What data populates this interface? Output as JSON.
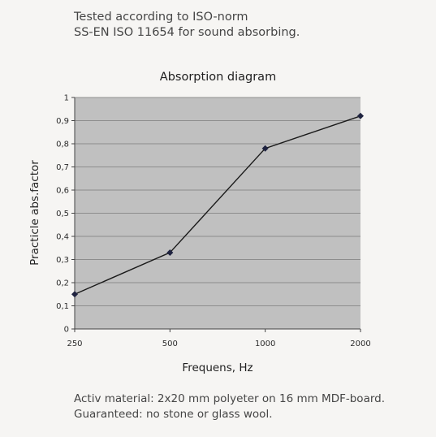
{
  "header": {
    "line1": "Tested according to ISO-norm",
    "line2": "SS-EN ISO 11654 for sound absorbing."
  },
  "footer": {
    "line1": "Activ material: 2x20 mm polyeter on 16 mm MDF-board.",
    "line2": "Guaranteed: no stone or glass wool."
  },
  "colors": {
    "page_background": "#f6f5f3",
    "plot_background": "#c0c0c0",
    "series_line": "#1a1a1a",
    "marker": "#1f2340"
  },
  "chart_data": {
    "type": "line",
    "title": "Absorption diagram",
    "xlabel": "Frequens, Hz",
    "ylabel": "Practicle abs.factor",
    "categories": [
      "250",
      "500",
      "1000",
      "2000"
    ],
    "series": [
      {
        "values": [
          0.15,
          0.33,
          0.78,
          0.92
        ],
        "marker": "diamond"
      }
    ],
    "ylim": [
      0,
      1
    ],
    "yticks": [
      "0",
      "0,1",
      "0,2",
      "0,3",
      "0,4",
      "0,5",
      "0,6",
      "0,7",
      "0,8",
      "0,9",
      "1"
    ],
    "grid": true,
    "legend": "none"
  }
}
